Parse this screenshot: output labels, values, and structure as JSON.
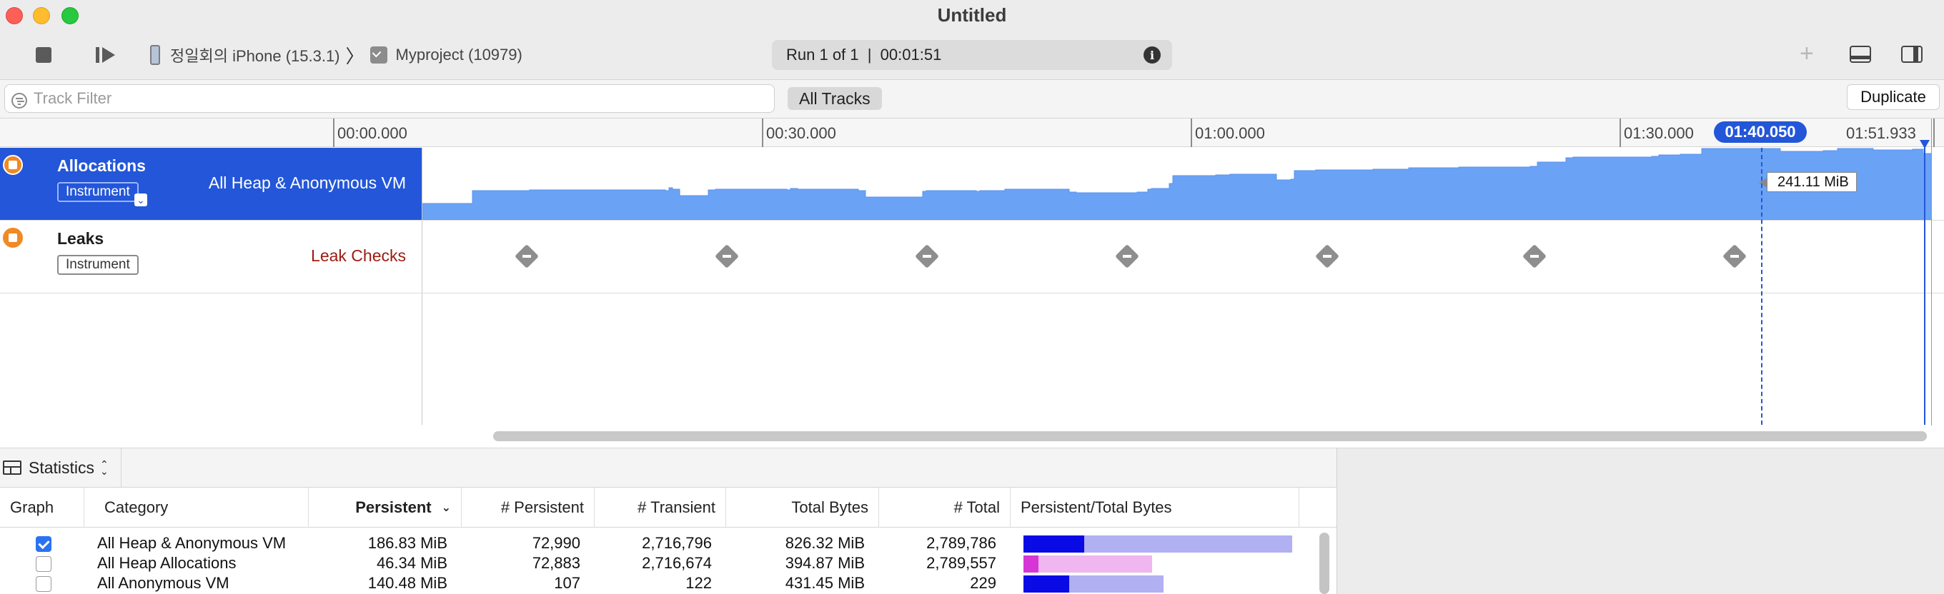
{
  "window": {
    "title": "Untitled"
  },
  "toolbar": {
    "device_label": "정일회의 iPhone (15.3.1)",
    "process_label": "Myproject (10979)",
    "run_status": "Run 1 of 1  |  00:01:51",
    "duplicate_label": "Duplicate",
    "all_tracks_label": "All Tracks"
  },
  "filter": {
    "placeholder": "Track Filter"
  },
  "ruler": {
    "ticks": [
      {
        "label": "00:00.000",
        "seconds": 0
      },
      {
        "label": "00:30.000",
        "seconds": 30
      },
      {
        "label": "01:00.000",
        "seconds": 60
      },
      {
        "label": "01:30.000",
        "seconds": 90
      },
      {
        "label": "01:51.933",
        "seconds": 111.933
      }
    ],
    "cursor_label": "01:40.050"
  },
  "tracks": [
    {
      "name": "Allocations",
      "tag": "Instrument",
      "subtitle": "All Heap & Anonymous VM",
      "value_label": "241.11 MiB"
    },
    {
      "name": "Leaks",
      "tag": "Instrument",
      "subtitle": "Leak Checks",
      "leak_check_seconds": [
        13.5,
        27.5,
        41.5,
        55.5,
        69.5,
        84,
        98
      ]
    }
  ],
  "stats": {
    "view_label": "Statistics",
    "columns": [
      "Graph",
      "Category",
      "Persistent",
      "# Persistent",
      "# Transient",
      "Total Bytes",
      "# Total",
      "Persistent/Total Bytes"
    ],
    "rows": [
      {
        "checked": true,
        "category": "All Heap & Anonymous VM",
        "persistent": "186.83 MiB",
        "num_persistent": "72,990",
        "num_transient": "2,716,796",
        "total_bytes": "826.32 MiB",
        "num_total": "2,789,786",
        "bar_fraction": 0.226,
        "bar_scale": 1.0,
        "fg_color": "#0a0ae6",
        "bg_color": "#b0b0f2"
      },
      {
        "checked": false,
        "category": "All Heap Allocations",
        "persistent": "46.34 MiB",
        "num_persistent": "72,883",
        "num_transient": "2,716,674",
        "total_bytes": "394.87 MiB",
        "num_total": "2,789,557",
        "bar_fraction": 0.117,
        "bar_scale": 0.478,
        "fg_color": "#d636d6",
        "bg_color": "#f0b6f0"
      },
      {
        "checked": false,
        "category": "All Anonymous VM",
        "persistent": "140.48 MiB",
        "num_persistent": "107",
        "num_transient": "122",
        "total_bytes": "431.45 MiB",
        "num_total": "229",
        "bar_fraction": 0.326,
        "bar_scale": 0.522,
        "fg_color": "#0a0ae6",
        "bg_color": "#b0b0f2"
      }
    ]
  }
}
